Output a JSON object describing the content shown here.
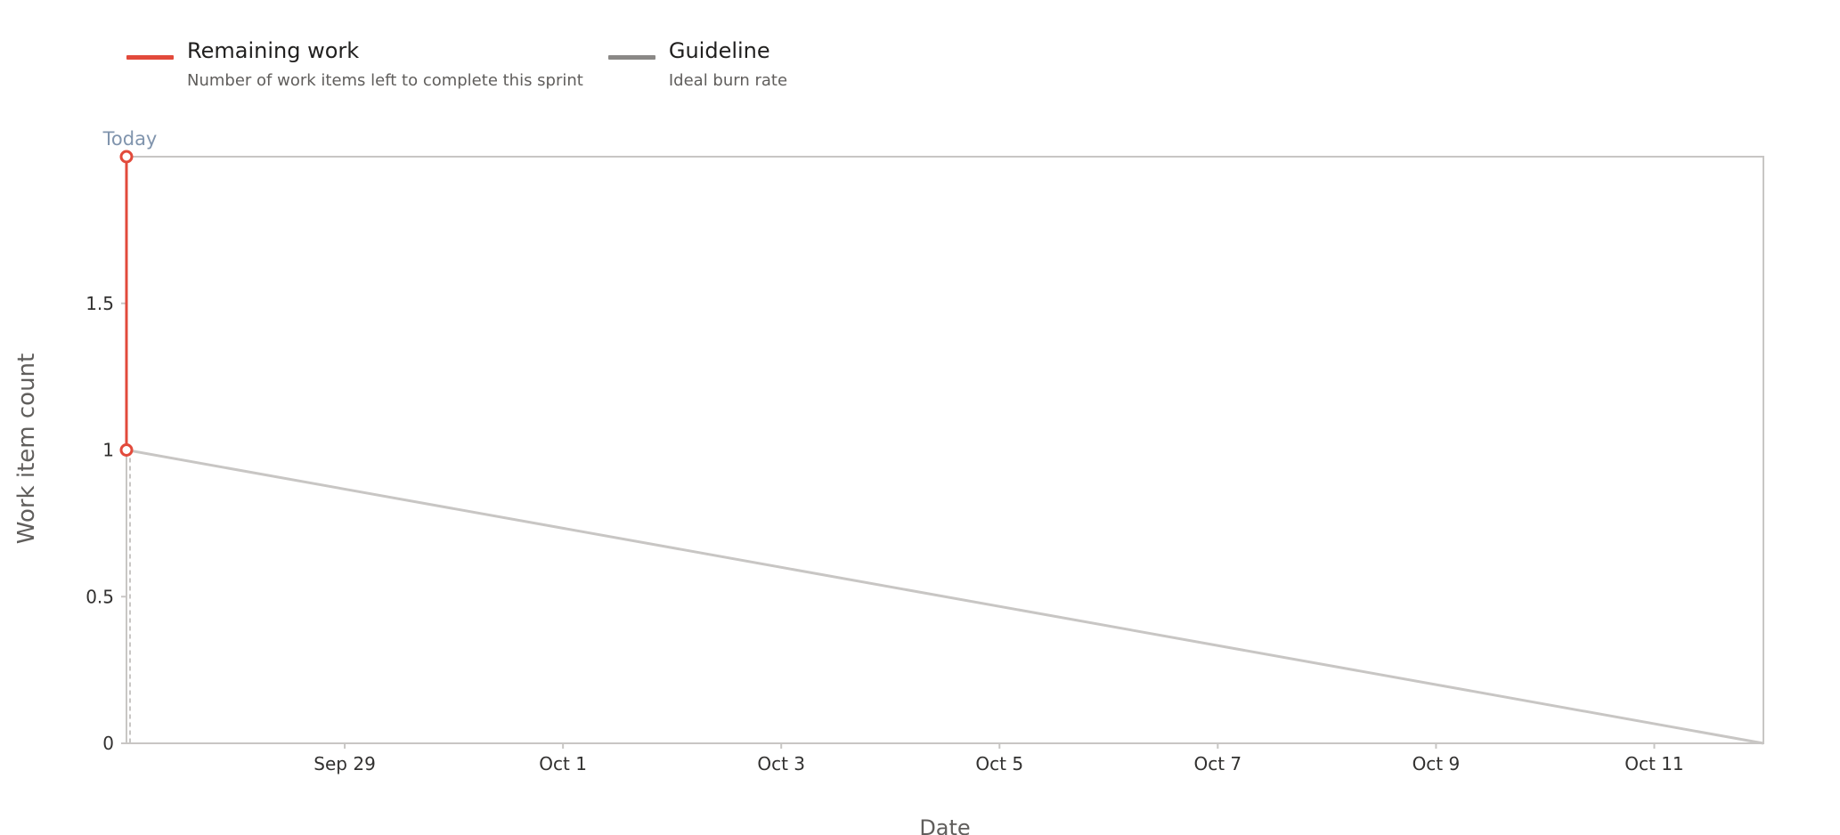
{
  "legend": [
    {
      "title": "Remaining work",
      "description": "Number of work items left to complete this sprint",
      "color": "#e24a3b"
    },
    {
      "title": "Guideline",
      "description": "Ideal burn rate",
      "color": "#8a8886"
    }
  ],
  "chart_data": {
    "type": "line",
    "xlabel": "Date",
    "ylabel": "Work item count",
    "today_label": "Today",
    "x_range": [
      "Sep 27",
      "Oct 12"
    ],
    "ylim": [
      0,
      2
    ],
    "yticks": [
      0,
      0.5,
      1,
      1.5
    ],
    "ytick_labels": [
      "0",
      "0.5",
      "1",
      "1.5"
    ],
    "xticks": [
      "Sep 29",
      "Oct 1",
      "Oct 3",
      "Oct 5",
      "Oct 7",
      "Oct 9",
      "Oct 11"
    ],
    "series": [
      {
        "name": "Remaining work",
        "color": "#e24a3b",
        "points": [
          {
            "x": "Sep 27",
            "y": 1
          },
          {
            "x": "Sep 27",
            "y": 2
          }
        ]
      },
      {
        "name": "Guideline",
        "color": "#c8c6c4",
        "points": [
          {
            "x": "Sep 27",
            "y": 1
          },
          {
            "x": "Oct 12",
            "y": 0
          }
        ]
      }
    ],
    "today": "Sep 27",
    "grid": false,
    "legend_position": "top-left"
  }
}
